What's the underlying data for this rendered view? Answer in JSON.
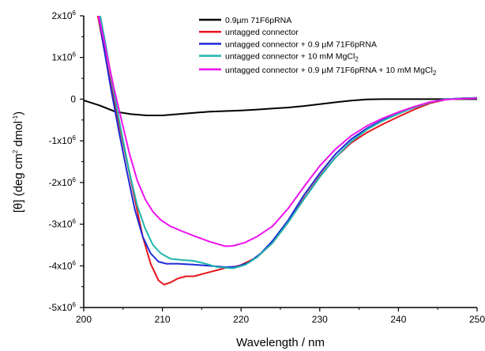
{
  "chart_data": {
    "type": "line",
    "xlabel": "Wavelength / nm",
    "ylabel": {
      "base": "[θ] (deg cm",
      "sup1": "2",
      "mid": " dmol",
      "sup2": "-1",
      "end": ")"
    },
    "xlim": [
      200,
      250
    ],
    "ylim": [
      -5000000,
      2000000
    ],
    "x_ticks": [
      {
        "value": 200,
        "label": "200"
      },
      {
        "value": 210,
        "label": "210"
      },
      {
        "value": 220,
        "label": "220"
      },
      {
        "value": 230,
        "label": "230"
      },
      {
        "value": 240,
        "label": "240"
      },
      {
        "value": 250,
        "label": "250"
      }
    ],
    "y_ticks": [
      {
        "value": 2000000,
        "label": "2x10",
        "exp": "6"
      },
      {
        "value": 1000000,
        "label": "1x10",
        "exp": "6"
      },
      {
        "value": 0,
        "label": "0",
        "exp": ""
      },
      {
        "value": -1000000,
        "label": "-1x10",
        "exp": "6"
      },
      {
        "value": -2000000,
        "label": "-2x10",
        "exp": "6"
      },
      {
        "value": -3000000,
        "label": "-3x10",
        "exp": "6"
      },
      {
        "value": -4000000,
        "label": "-4x10",
        "exp": "6"
      },
      {
        "value": -5000000,
        "label": "-5x10",
        "exp": "6"
      }
    ],
    "grid": false,
    "legend_position": "top-right",
    "series": [
      {
        "name": "0.9µm 71F6pRNA",
        "color": "#000000",
        "points": [
          [
            198.2,
            0
          ],
          [
            200,
            -30000
          ],
          [
            202,
            -150000
          ],
          [
            204,
            -300000
          ],
          [
            206,
            -360000
          ],
          [
            208,
            -390000
          ],
          [
            210,
            -390000
          ],
          [
            212,
            -360000
          ],
          [
            214,
            -330000
          ],
          [
            216,
            -300000
          ],
          [
            218,
            -285000
          ],
          [
            220,
            -270000
          ],
          [
            222,
            -250000
          ],
          [
            224,
            -225000
          ],
          [
            226,
            -200000
          ],
          [
            228,
            -165000
          ],
          [
            230,
            -120000
          ],
          [
            232,
            -75000
          ],
          [
            234,
            -35000
          ],
          [
            236,
            -5000
          ],
          [
            238,
            0
          ],
          [
            242,
            0
          ],
          [
            246,
            0
          ],
          [
            250,
            0
          ]
        ]
      },
      {
        "name": "untagged connector",
        "color": "#e8141c",
        "points": [
          [
            201.8,
            2000000
          ],
          [
            202.5,
            1300000
          ],
          [
            203.5,
            300000
          ],
          [
            204.5,
            -600000
          ],
          [
            205.5,
            -1500000
          ],
          [
            206.5,
            -2400000
          ],
          [
            207.5,
            -3300000
          ],
          [
            208.5,
            -3950000
          ],
          [
            209.5,
            -4350000
          ],
          [
            210.2,
            -4450000
          ],
          [
            211,
            -4400000
          ],
          [
            212,
            -4300000
          ],
          [
            213,
            -4250000
          ],
          [
            214,
            -4250000
          ],
          [
            215,
            -4200000
          ],
          [
            216,
            -4150000
          ],
          [
            217,
            -4100000
          ],
          [
            218,
            -4050000
          ],
          [
            219,
            -4030000
          ],
          [
            220,
            -3980000
          ],
          [
            222,
            -3800000
          ],
          [
            224,
            -3450000
          ],
          [
            226,
            -2950000
          ],
          [
            228,
            -2380000
          ],
          [
            230,
            -1850000
          ],
          [
            232,
            -1400000
          ],
          [
            234,
            -1050000
          ],
          [
            236,
            -800000
          ],
          [
            238,
            -600000
          ],
          [
            240,
            -420000
          ],
          [
            242,
            -250000
          ],
          [
            244,
            -100000
          ],
          [
            246,
            -10000
          ],
          [
            248,
            20000
          ],
          [
            250,
            30000
          ]
        ]
      },
      {
        "name": "untagged connector + 0.9 µM 71F6pRNA",
        "color": "#1e2ad8",
        "points": [
          [
            201.9,
            2000000
          ],
          [
            202.5,
            1300000
          ],
          [
            203.5,
            200000
          ],
          [
            204.5,
            -800000
          ],
          [
            205.5,
            -1750000
          ],
          [
            206.5,
            -2650000
          ],
          [
            207.5,
            -3300000
          ],
          [
            208.5,
            -3700000
          ],
          [
            209.5,
            -3900000
          ],
          [
            210.5,
            -3950000
          ],
          [
            212,
            -3950000
          ],
          [
            214,
            -3970000
          ],
          [
            216,
            -4000000
          ],
          [
            218,
            -4030000
          ],
          [
            219.5,
            -4020000
          ],
          [
            221,
            -3920000
          ],
          [
            222.5,
            -3700000
          ],
          [
            224,
            -3400000
          ],
          [
            226,
            -2900000
          ],
          [
            228,
            -2300000
          ],
          [
            230,
            -1780000
          ],
          [
            232,
            -1320000
          ],
          [
            234,
            -960000
          ],
          [
            236,
            -700000
          ],
          [
            238,
            -500000
          ],
          [
            240,
            -340000
          ],
          [
            242,
            -200000
          ],
          [
            244,
            -80000
          ],
          [
            246,
            0
          ],
          [
            248,
            20000
          ],
          [
            250,
            30000
          ]
        ]
      },
      {
        "name": "untagged connector + 10 mM MgCl",
        "name_sub": "2",
        "color": "#1fb5ad",
        "points": [
          [
            202.1,
            2000000
          ],
          [
            202.8,
            1300000
          ],
          [
            203.8,
            200000
          ],
          [
            204.8,
            -800000
          ],
          [
            205.8,
            -1750000
          ],
          [
            206.8,
            -2550000
          ],
          [
            207.8,
            -3100000
          ],
          [
            208.8,
            -3500000
          ],
          [
            209.8,
            -3700000
          ],
          [
            211,
            -3830000
          ],
          [
            212.5,
            -3860000
          ],
          [
            214,
            -3880000
          ],
          [
            215.5,
            -3950000
          ],
          [
            217,
            -4030000
          ],
          [
            219,
            -4060000
          ],
          [
            220.5,
            -3980000
          ],
          [
            222,
            -3800000
          ],
          [
            224,
            -3450000
          ],
          [
            226,
            -2950000
          ],
          [
            228,
            -2400000
          ],
          [
            230,
            -1870000
          ],
          [
            232,
            -1400000
          ],
          [
            234,
            -1020000
          ],
          [
            236,
            -730000
          ],
          [
            238,
            -520000
          ],
          [
            240,
            -350000
          ],
          [
            242,
            -200000
          ],
          [
            244,
            -80000
          ],
          [
            246,
            0
          ],
          [
            248,
            20000
          ],
          [
            250,
            30000
          ]
        ]
      },
      {
        "name": "untagged connector + 0.9 µM 71F6pRNA + 10 mM MgCl",
        "name_sub": "2",
        "color": "#ee12ee",
        "points": [
          [
            201.9,
            2000000
          ],
          [
            202.8,
            1200000
          ],
          [
            203.8,
            300000
          ],
          [
            204.8,
            -500000
          ],
          [
            205.8,
            -1300000
          ],
          [
            206.8,
            -1950000
          ],
          [
            207.8,
            -2400000
          ],
          [
            208.8,
            -2700000
          ],
          [
            209.8,
            -2900000
          ],
          [
            211,
            -3050000
          ],
          [
            212.5,
            -3170000
          ],
          [
            214,
            -3280000
          ],
          [
            216,
            -3420000
          ],
          [
            218,
            -3530000
          ],
          [
            219,
            -3520000
          ],
          [
            220.5,
            -3440000
          ],
          [
            222,
            -3300000
          ],
          [
            224,
            -3050000
          ],
          [
            226,
            -2620000
          ],
          [
            228,
            -2100000
          ],
          [
            230,
            -1600000
          ],
          [
            232,
            -1200000
          ],
          [
            234,
            -880000
          ],
          [
            236,
            -640000
          ],
          [
            238,
            -460000
          ],
          [
            240,
            -310000
          ],
          [
            242,
            -180000
          ],
          [
            244,
            -70000
          ],
          [
            246,
            -10000
          ],
          [
            248,
            10000
          ],
          [
            250,
            20000
          ]
        ]
      }
    ]
  }
}
